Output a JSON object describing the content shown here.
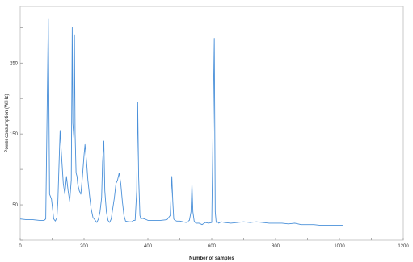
{
  "chart_data": {
    "type": "line",
    "title": "",
    "xlabel": "Number of samples",
    "ylabel": "Power consumption (W/Hz)",
    "xlim": [
      0,
      1200
    ],
    "ylim": [
      0,
      330
    ],
    "xticks": [
      0,
      100,
      200,
      300,
      400,
      500,
      600,
      700,
      800,
      900,
      1000,
      1100,
      1200
    ],
    "xtick_labels": [
      "0",
      "",
      "200",
      "",
      "400",
      "",
      "600",
      "",
      "800",
      "",
      "1000",
      "",
      "1200"
    ],
    "yticks": [
      0,
      50,
      100,
      150,
      200,
      250,
      300
    ],
    "ytick_labels": [
      "",
      "50",
      "",
      "150",
      "",
      "250",
      ""
    ],
    "grid": false,
    "legend": "none",
    "series": [
      {
        "color": "#4a90d9",
        "x": [
          0,
          20,
          40,
          60,
          75,
          80,
          88,
          92,
          98,
          105,
          110,
          115,
          118,
          125,
          128,
          135,
          140,
          145,
          150,
          155,
          160,
          163,
          165,
          168,
          170,
          172,
          175,
          178,
          180,
          185,
          190,
          195,
          200,
          203,
          208,
          212,
          218,
          222,
          228,
          235,
          240,
          245,
          250,
          255,
          258,
          262,
          265,
          270,
          275,
          280,
          285,
          290,
          295,
          300,
          305,
          310,
          315,
          320,
          325,
          330,
          340,
          345,
          350,
          355,
          360,
          365,
          368,
          371,
          375,
          378,
          383,
          390,
          400,
          420,
          440,
          460,
          470,
          475,
          478,
          481,
          485,
          490,
          500,
          510,
          520,
          530,
          535,
          538,
          541,
          545,
          550,
          560,
          570,
          580,
          590,
          600,
          608,
          611,
          614,
          618,
          622,
          630,
          640,
          660,
          680,
          700,
          720,
          740,
          760,
          780,
          800,
          820,
          840,
          860,
          880,
          900,
          920,
          940,
          960,
          980,
          1000,
          1010
        ],
        "y": [
          30,
          29,
          29,
          28,
          28,
          30,
          313,
          65,
          58,
          30,
          27,
          32,
          55,
          155,
          130,
          80,
          65,
          90,
          70,
          55,
          85,
          300,
          165,
          145,
          290,
          150,
          95,
          90,
          80,
          70,
          65,
          90,
          120,
          135,
          110,
          85,
          60,
          45,
          32,
          28,
          25,
          30,
          40,
          60,
          110,
          140,
          70,
          40,
          28,
          25,
          30,
          45,
          60,
          80,
          85,
          95,
          80,
          55,
          35,
          27,
          26,
          26,
          26,
          28,
          28,
          70,
          195,
          90,
          35,
          30,
          31,
          30,
          28,
          28,
          28,
          29,
          35,
          90,
          55,
          30,
          28,
          27,
          27,
          26,
          25,
          28,
          40,
          80,
          40,
          27,
          24,
          24,
          22,
          25,
          24,
          25,
          285,
          40,
          25,
          26,
          24,
          26,
          25,
          24,
          25,
          26,
          25,
          26,
          25,
          24,
          24,
          24,
          23,
          24,
          22,
          22,
          22,
          21,
          21,
          21,
          21,
          21
        ]
      }
    ]
  }
}
